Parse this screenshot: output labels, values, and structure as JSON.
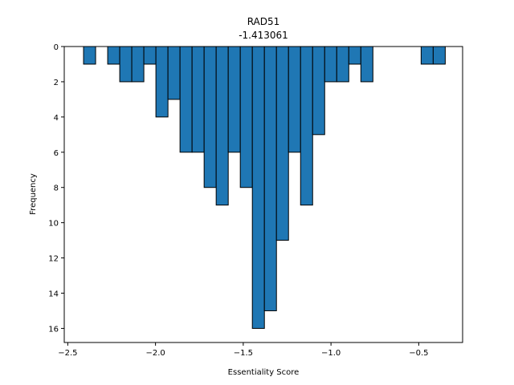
{
  "chart_data": {
    "type": "bar",
    "title": "RAD51",
    "subtitle": "-1.413061",
    "xlabel": "Essentiality Score",
    "ylabel": "Frequency",
    "xlim": [
      -2.52,
      -0.25
    ],
    "ylim": [
      16.8,
      0
    ],
    "y_inverted": true,
    "bin_width": 0.0687,
    "xticks": [
      -2.5,
      -2.0,
      -1.5,
      -1.0,
      -0.5
    ],
    "xtick_labels": [
      "−2.5",
      "−2.0",
      "−1.5",
      "−1.0",
      "−0.5"
    ],
    "yticks": [
      0,
      2,
      4,
      6,
      8,
      10,
      12,
      14,
      16
    ],
    "ytick_labels": [
      "0",
      "2",
      "4",
      "6",
      "8",
      "10",
      "12",
      "14",
      "16"
    ],
    "bins": [
      {
        "x": -2.41,
        "count": 1
      },
      {
        "x": -2.2725,
        "count": 1
      },
      {
        "x": -2.2038,
        "count": 2
      },
      {
        "x": -2.1351,
        "count": 2
      },
      {
        "x": -2.0664,
        "count": 1
      },
      {
        "x": -1.9977,
        "count": 4
      },
      {
        "x": -1.929,
        "count": 3
      },
      {
        "x": -1.8603,
        "count": 6
      },
      {
        "x": -1.7916,
        "count": 6
      },
      {
        "x": -1.7229,
        "count": 8
      },
      {
        "x": -1.6542,
        "count": 9
      },
      {
        "x": -1.5855,
        "count": 6
      },
      {
        "x": -1.5168,
        "count": 8
      },
      {
        "x": -1.4481,
        "count": 16
      },
      {
        "x": -1.3794,
        "count": 15
      },
      {
        "x": -1.3107,
        "count": 11
      },
      {
        "x": -1.242,
        "count": 6
      },
      {
        "x": -1.1733,
        "count": 9
      },
      {
        "x": -1.1046,
        "count": 5
      },
      {
        "x": -1.0359,
        "count": 2
      },
      {
        "x": -0.9672,
        "count": 2
      },
      {
        "x": -0.8985,
        "count": 1
      },
      {
        "x": -0.8298,
        "count": 2
      },
      {
        "x": -0.4863,
        "count": 1
      },
      {
        "x": -0.4176,
        "count": 1
      }
    ],
    "colors": {
      "bar_fill": "#1f77b4",
      "bar_edge": "#000000"
    }
  }
}
